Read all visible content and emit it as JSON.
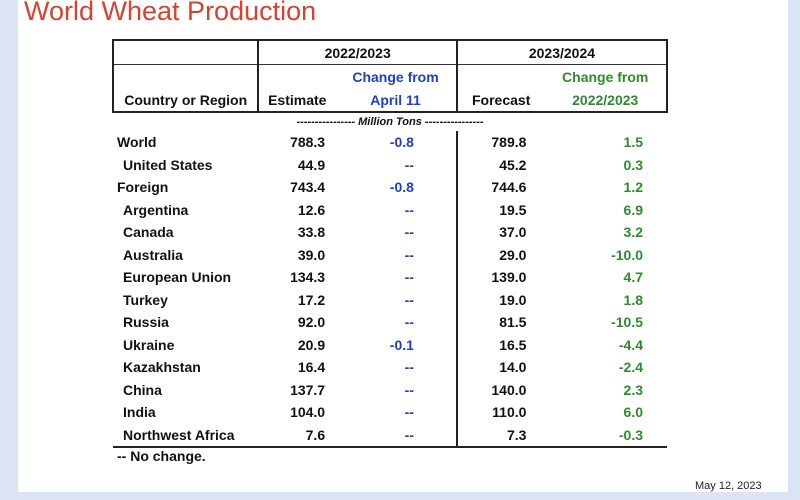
{
  "title": "World Wheat Production",
  "header": {
    "country_label": "Country or Region",
    "year1": "2022/2023",
    "year2": "2023/2024",
    "estimate": "Estimate",
    "change_from_1a": "Change from",
    "change_from_1b": "April 11",
    "forecast": "Forecast",
    "change_from_2a": "Change from",
    "change_from_2b": "2022/2023"
  },
  "units": "---------------- Million Tons ----------------",
  "rows": [
    {
      "label": "World",
      "indent": false,
      "estimate": "788.3",
      "change1": "-0.8",
      "forecast": "789.8",
      "change2": "1.5"
    },
    {
      "label": "United States",
      "indent": true,
      "estimate": "44.9",
      "change1": "--",
      "forecast": "45.2",
      "change2": "0.3"
    },
    {
      "label": "Foreign",
      "indent": false,
      "estimate": "743.4",
      "change1": "-0.8",
      "forecast": "744.6",
      "change2": "1.2"
    },
    {
      "label": "Argentina",
      "indent": true,
      "estimate": "12.6",
      "change1": "--",
      "forecast": "19.5",
      "change2": "6.9"
    },
    {
      "label": "Canada",
      "indent": true,
      "estimate": "33.8",
      "change1": "--",
      "forecast": "37.0",
      "change2": "3.2"
    },
    {
      "label": "Australia",
      "indent": true,
      "estimate": "39.0",
      "change1": "--",
      "forecast": "29.0",
      "change2": "-10.0"
    },
    {
      "label": "European Union",
      "indent": true,
      "estimate": "134.3",
      "change1": "--",
      "forecast": "139.0",
      "change2": "4.7"
    },
    {
      "label": "Turkey",
      "indent": true,
      "estimate": "17.2",
      "change1": "--",
      "forecast": "19.0",
      "change2": "1.8"
    },
    {
      "label": "Russia",
      "indent": true,
      "estimate": "92.0",
      "change1": "--",
      "forecast": "81.5",
      "change2": "-10.5"
    },
    {
      "label": "Ukraine",
      "indent": true,
      "estimate": "20.9",
      "change1": "-0.1",
      "forecast": "16.5",
      "change2": "-4.4"
    },
    {
      "label": "Kazakhstan",
      "indent": true,
      "estimate": "16.4",
      "change1": "--",
      "forecast": "14.0",
      "change2": "-2.4"
    },
    {
      "label": "China",
      "indent": true,
      "estimate": "137.7",
      "change1": "--",
      "forecast": "140.0",
      "change2": "2.3"
    },
    {
      "label": "India",
      "indent": true,
      "estimate": "104.0",
      "change1": "--",
      "forecast": "110.0",
      "change2": "6.0"
    },
    {
      "label": "Northwest Africa",
      "indent": true,
      "estimate": "7.6",
      "change1": "--",
      "forecast": "7.3",
      "change2": "-0.3"
    }
  ],
  "footnote": "-- No change.",
  "date": "May 12, 2023",
  "colors": {
    "title": "#d7422e",
    "change_blue": "#1e3fc8",
    "change_green": "#2f8a2f",
    "background": "#dbe4f3"
  }
}
